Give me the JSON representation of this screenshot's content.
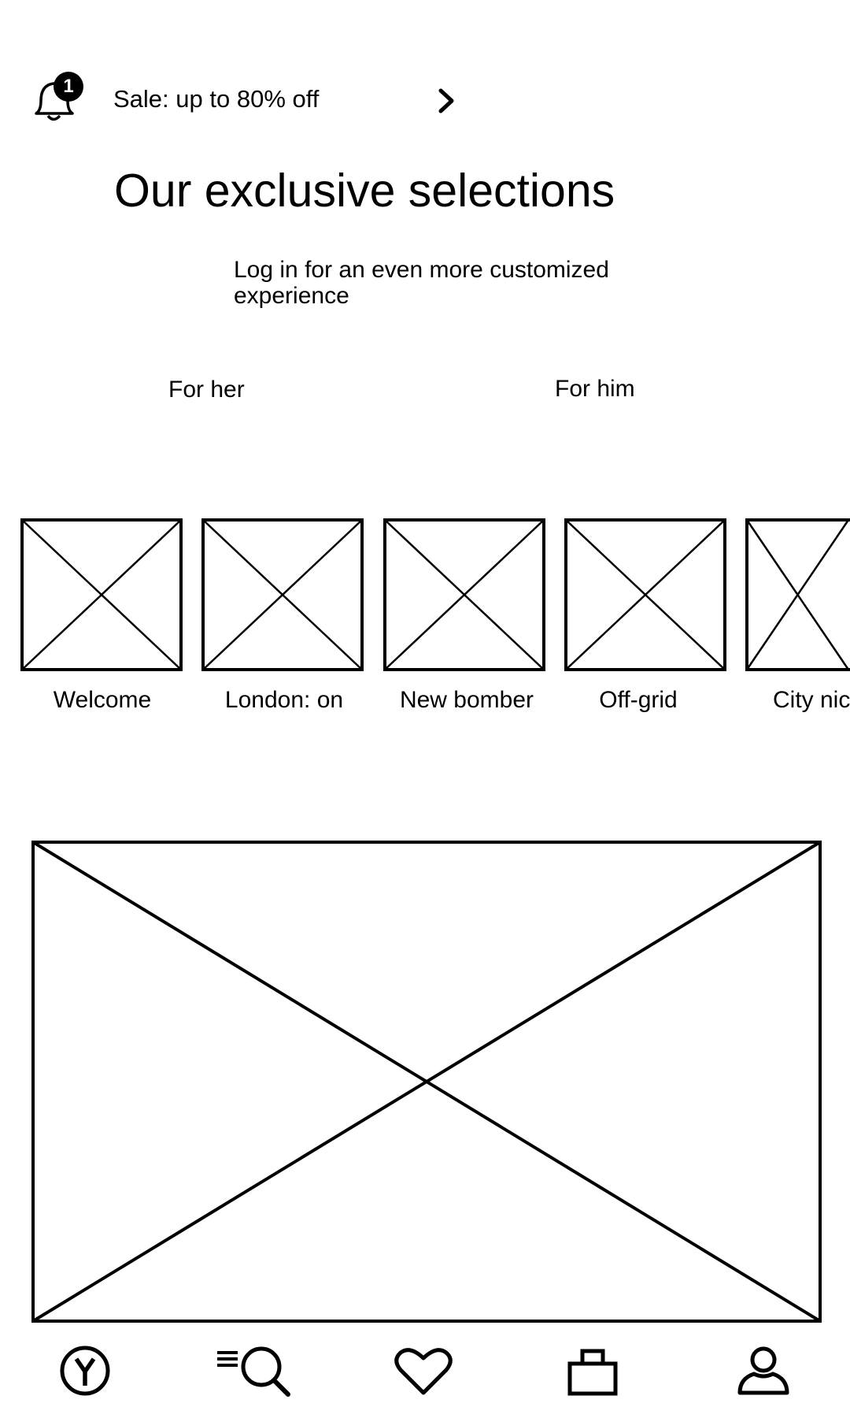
{
  "notification": {
    "icon": "bell-icon",
    "badge_count": "1",
    "promo_text": "Sale: up to 80% off",
    "arrow_icon": "chevron-right-icon"
  },
  "headline": "Our exclusive selections",
  "subtext": "Log in for an even more customized experience",
  "tabs": [
    {
      "label": "For her"
    },
    {
      "label": "For him"
    }
  ],
  "carousel": {
    "items": [
      {
        "label": "Welcome",
        "image": "image-placeholder"
      },
      {
        "label": "London: on",
        "image": "image-placeholder"
      },
      {
        "label": "New bomber",
        "image": "image-placeholder"
      },
      {
        "label": "Off-grid",
        "image": "image-placeholder"
      },
      {
        "label": "City nic",
        "image": "image-placeholder"
      }
    ]
  },
  "hero": {
    "image": "image-placeholder"
  },
  "bottom_nav": {
    "items": [
      {
        "icon": "home-logo-icon"
      },
      {
        "icon": "menu-search-icon"
      },
      {
        "icon": "heart-icon"
      },
      {
        "icon": "shopping-bag-icon"
      },
      {
        "icon": "profile-icon"
      }
    ]
  }
}
